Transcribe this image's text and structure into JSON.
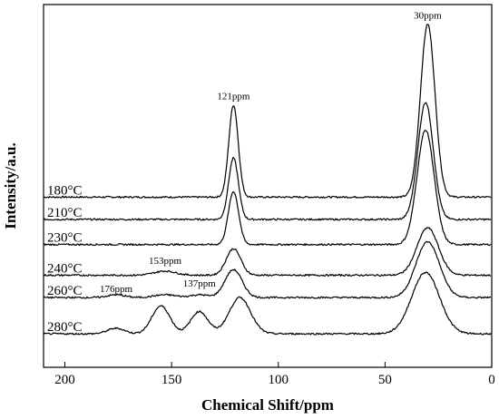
{
  "chart_data": {
    "type": "line",
    "title": "",
    "xlabel": "Chemical Shift/ppm",
    "ylabel": "Intensity/a.u.",
    "xlim": [
      210,
      0
    ],
    "x_reversed": true,
    "xticks": [
      200,
      150,
      100,
      50,
      0
    ],
    "y_ticks_shown": false,
    "grid": false,
    "legend": "labels-left-of-traces",
    "series": [
      {
        "name": "180°C",
        "baseline": 0.61,
        "peaks": [
          {
            "x": 121,
            "height": 0.33,
            "width": 2.2
          },
          {
            "x": 30,
            "height": 0.62,
            "width": 3.4
          }
        ]
      },
      {
        "name": "210°C",
        "baseline": 0.53,
        "peaks": [
          {
            "x": 121,
            "height": 0.22,
            "width": 2.3
          },
          {
            "x": 31,
            "height": 0.42,
            "width": 3.6
          }
        ]
      },
      {
        "name": "230°C",
        "baseline": 0.44,
        "peaks": [
          {
            "x": 121,
            "height": 0.19,
            "width": 2.4
          },
          {
            "x": 31,
            "height": 0.41,
            "width": 4.0
          }
        ]
      },
      {
        "name": "240°C",
        "baseline": 0.33,
        "peaks": [
          {
            "x": 153,
            "height": 0.015,
            "width": 5
          },
          {
            "x": 121,
            "height": 0.095,
            "width": 3.4
          },
          {
            "x": 30,
            "height": 0.17,
            "width": 5.0
          }
        ]
      },
      {
        "name": "260°C",
        "baseline": 0.25,
        "peaks": [
          {
            "x": 176,
            "height": 0.01,
            "width": 4
          },
          {
            "x": 153,
            "height": 0.01,
            "width": 5
          },
          {
            "x": 137,
            "height": 0.01,
            "width": 4
          },
          {
            "x": 121,
            "height": 0.1,
            "width": 4.0
          },
          {
            "x": 30,
            "height": 0.2,
            "width": 5.5
          }
        ]
      },
      {
        "name": "280°C",
        "baseline": 0.12,
        "peaks": [
          {
            "x": 176,
            "height": 0.02,
            "width": 4
          },
          {
            "x": 155,
            "height": 0.1,
            "width": 4.2
          },
          {
            "x": 137,
            "height": 0.08,
            "width": 4.0
          },
          {
            "x": 118,
            "height": 0.13,
            "width": 5.0
          },
          {
            "x": 31,
            "height": 0.22,
            "width": 6.5
          }
        ]
      }
    ],
    "annotations": [
      {
        "text": "30ppm",
        "x": 30,
        "y": 1.25
      },
      {
        "text": "121ppm",
        "x": 121,
        "y": 0.96
      },
      {
        "text": "153ppm",
        "x": 153,
        "y": 0.37
      },
      {
        "text": "137ppm",
        "x": 137,
        "y": 0.29
      },
      {
        "text": "176ppm",
        "x": 176,
        "y": 0.27
      }
    ],
    "ylim": [
      0,
      1.3
    ]
  }
}
